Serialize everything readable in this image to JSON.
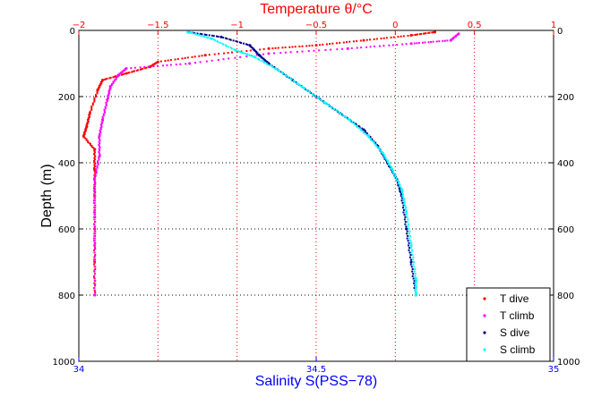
{
  "chart_data": {
    "type": "scatter",
    "title": "Temperature θ/°C",
    "xlabel": "Salinity S(PSS−78)",
    "ylabel": "Depth (m)",
    "grid": true,
    "legend_position": "bottom-right",
    "axes": {
      "temperature": {
        "position": "top",
        "label": "Temperature θ/°C",
        "range": [
          -2,
          1
        ],
        "ticks": [
          -2,
          -1.5,
          -1,
          -0.5,
          0,
          0.5,
          1
        ],
        "tick_labels": [
          "−2",
          "−1.5",
          "−1",
          "−0.5",
          "0",
          "0.5",
          "1"
        ],
        "color": "#ff0000"
      },
      "salinity": {
        "position": "bottom",
        "label": "Salinity S(PSS−78)",
        "range": [
          34,
          35
        ],
        "ticks": [
          34,
          34.5,
          35
        ],
        "tick_labels": [
          "34",
          "34.5",
          "35"
        ],
        "color": "#0000ff"
      },
      "depth": {
        "label": "Depth (m)",
        "range": [
          0,
          1000
        ],
        "reversed": true,
        "ticks": [
          0,
          200,
          400,
          600,
          800,
          1000
        ],
        "tick_labels": [
          "0",
          "200",
          "400",
          "600",
          "800",
          "1000"
        ]
      }
    },
    "series": [
      {
        "name": "T dive",
        "axis": "temperature",
        "color": "#ff0000",
        "points": [
          [
            0.25,
            5
          ],
          [
            0.1,
            15
          ],
          [
            -0.2,
            30
          ],
          [
            -0.5,
            45
          ],
          [
            -0.8,
            55
          ],
          [
            -1.2,
            75
          ],
          [
            -1.5,
            95
          ],
          [
            -1.55,
            110
          ],
          [
            -1.7,
            130
          ],
          [
            -1.85,
            150
          ],
          [
            -1.88,
            180
          ],
          [
            -1.93,
            250
          ],
          [
            -1.95,
            290
          ],
          [
            -1.97,
            320
          ],
          [
            -1.9,
            360
          ],
          [
            -1.9,
            420
          ],
          [
            -1.9,
            500
          ],
          [
            -1.9,
            600
          ],
          [
            -1.9,
            700
          ],
          [
            -1.9,
            800
          ]
        ]
      },
      {
        "name": "T climb",
        "axis": "temperature",
        "color": "#ff00ff",
        "points": [
          [
            0.4,
            10
          ],
          [
            0.35,
            30
          ],
          [
            0.1,
            40
          ],
          [
            -0.3,
            55
          ],
          [
            -0.8,
            70
          ],
          [
            -1.3,
            100
          ],
          [
            -1.7,
            115
          ],
          [
            -1.75,
            135
          ],
          [
            -1.8,
            170
          ],
          [
            -1.82,
            210
          ],
          [
            -1.85,
            270
          ],
          [
            -1.87,
            320
          ],
          [
            -1.87,
            380
          ],
          [
            -1.9,
            450
          ],
          [
            -1.9,
            550
          ],
          [
            -1.9,
            650
          ],
          [
            -1.9,
            800
          ]
        ]
      },
      {
        "name": "S dive",
        "axis": "salinity",
        "color": "#00008b",
        "points": [
          [
            34.23,
            5
          ],
          [
            34.3,
            20
          ],
          [
            34.36,
            45
          ],
          [
            34.38,
            75
          ],
          [
            34.4,
            100
          ],
          [
            34.45,
            150
          ],
          [
            34.5,
            200
          ],
          [
            34.55,
            250
          ],
          [
            34.6,
            300
          ],
          [
            34.63,
            350
          ],
          [
            34.65,
            400
          ],
          [
            34.67,
            450
          ],
          [
            34.68,
            500
          ],
          [
            34.69,
            600
          ],
          [
            34.7,
            700
          ],
          [
            34.71,
            800
          ]
        ]
      },
      {
        "name": "S climb",
        "axis": "salinity",
        "color": "#00ffff",
        "points": [
          [
            34.23,
            5
          ],
          [
            34.28,
            25
          ],
          [
            34.33,
            60
          ],
          [
            34.37,
            80
          ],
          [
            34.42,
            120
          ],
          [
            34.47,
            170
          ],
          [
            34.52,
            220
          ],
          [
            34.57,
            270
          ],
          [
            34.61,
            320
          ],
          [
            34.64,
            370
          ],
          [
            34.66,
            420
          ],
          [
            34.68,
            480
          ],
          [
            34.69,
            550
          ],
          [
            34.7,
            650
          ],
          [
            34.71,
            750
          ],
          [
            34.71,
            800
          ]
        ]
      }
    ]
  }
}
